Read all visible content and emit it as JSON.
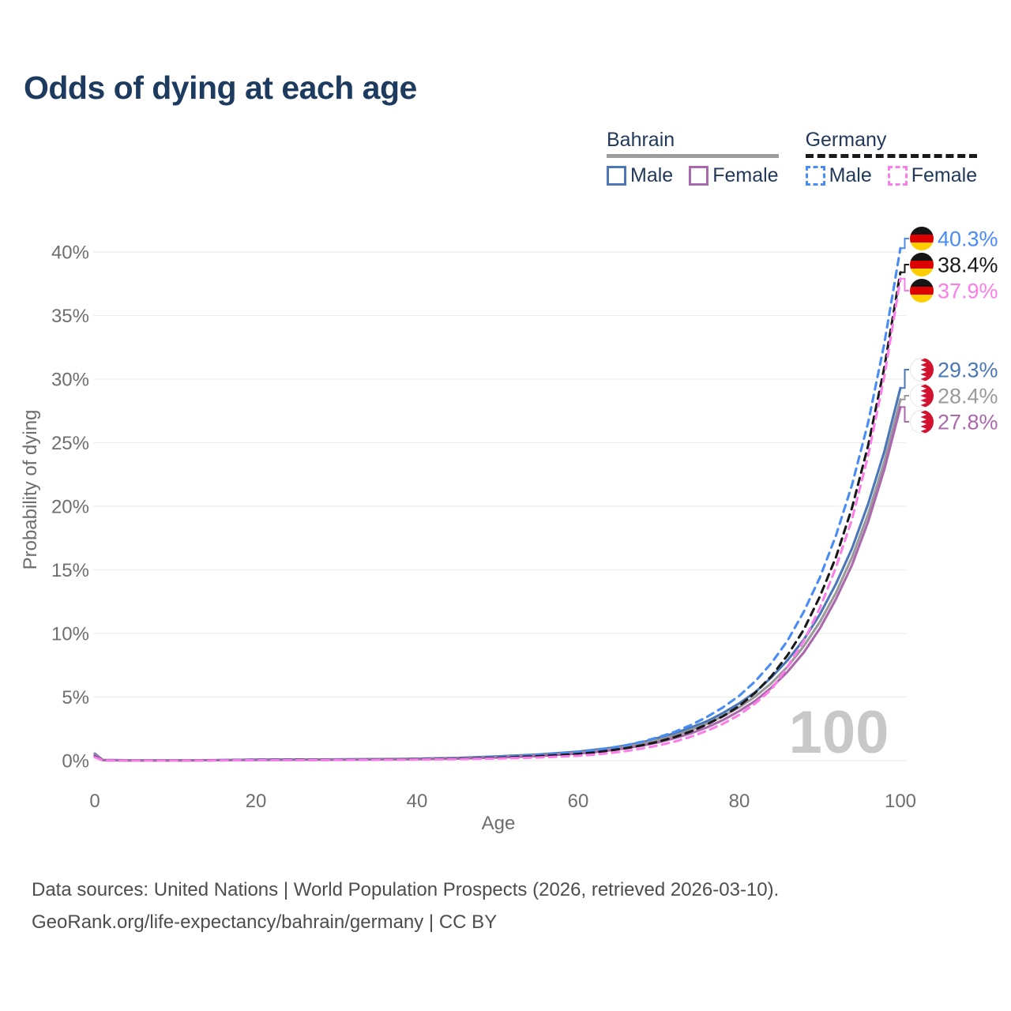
{
  "title": "Odds of dying at each age",
  "colors": {
    "title": "#1d3a5f",
    "legend_text": "#22395a",
    "footer": "#4d4d4d",
    "tick": "#6e6e6e",
    "grid": "#ededed",
    "watermark": "#c8c8c8"
  },
  "legend": {
    "groups": [
      {
        "name": "Bahrain",
        "style": "solid",
        "underline_color": "#9e9e9e",
        "items": [
          {
            "label": "Male",
            "color": "#4b77b8"
          },
          {
            "label": "Female",
            "color": "#ab68ad"
          }
        ]
      },
      {
        "name": "Germany",
        "style": "dashed",
        "underline_color": "#1a1a1a",
        "items": [
          {
            "label": "Male",
            "color": "#4a8cf5"
          },
          {
            "label": "Female",
            "color": "#fb7ee8"
          }
        ]
      }
    ]
  },
  "chart_data": {
    "type": "line",
    "title": "Odds of dying at each age",
    "xlabel": "Age",
    "ylabel": "Probability of dying",
    "xlim": [
      0,
      100
    ],
    "ylim": [
      0,
      41.5
    ],
    "grid": true,
    "legend_position": "top-right",
    "watermark": "100",
    "x_ticks": [
      0,
      20,
      40,
      60,
      80,
      100
    ],
    "y_ticks": [
      {
        "value": 0,
        "label": "0%"
      },
      {
        "value": 5,
        "label": "5%"
      },
      {
        "value": 10,
        "label": "10%"
      },
      {
        "value": 15,
        "label": "15%"
      },
      {
        "value": 20,
        "label": "20%"
      },
      {
        "value": 25,
        "label": "25%"
      },
      {
        "value": 30,
        "label": "30%"
      },
      {
        "value": 35,
        "label": "35%"
      },
      {
        "value": 40,
        "label": "40%"
      }
    ],
    "ages": [
      0,
      1,
      5,
      10,
      15,
      20,
      25,
      30,
      35,
      40,
      45,
      50,
      55,
      60,
      62,
      64,
      66,
      68,
      70,
      72,
      74,
      76,
      78,
      80,
      82,
      84,
      86,
      88,
      90,
      92,
      94,
      96,
      98,
      100
    ],
    "series": [
      {
        "id": "bahrain-male",
        "name": "Bahrain Male",
        "country": "Bahrain",
        "sex": "Male",
        "flag": "bahrain",
        "color": "#4b77b8",
        "dashed": false,
        "end_label": "29.3%",
        "end_label_color": "#4b77b8",
        "values": [
          0.55,
          0.05,
          0.02,
          0.02,
          0.04,
          0.08,
          0.09,
          0.1,
          0.12,
          0.15,
          0.22,
          0.33,
          0.48,
          0.7,
          0.85,
          1.0,
          1.2,
          1.45,
          1.8,
          2.15,
          2.6,
          3.1,
          3.75,
          4.5,
          5.4,
          6.55,
          7.9,
          9.5,
          11.5,
          13.9,
          16.7,
          20.2,
          24.3,
          29.3
        ]
      },
      {
        "id": "bahrain-total",
        "name": "Bahrain",
        "country": "Bahrain",
        "sex": "Both",
        "flag": "bahrain",
        "color": "#9a9a9a",
        "dashed": false,
        "end_label": "28.4%",
        "end_label_color": "#9a9a9a",
        "values": [
          0.5,
          0.045,
          0.018,
          0.018,
          0.035,
          0.065,
          0.075,
          0.085,
          0.1,
          0.13,
          0.19,
          0.28,
          0.42,
          0.62,
          0.75,
          0.9,
          1.1,
          1.33,
          1.62,
          1.97,
          2.4,
          2.9,
          3.5,
          4.2,
          5.05,
          6.1,
          7.4,
          9.0,
          10.9,
          13.2,
          16.0,
          19.4,
          23.5,
          28.4
        ]
      },
      {
        "id": "bahrain-female",
        "name": "Bahrain Female",
        "country": "Bahrain",
        "sex": "Female",
        "flag": "bahrain",
        "color": "#ab68ad",
        "dashed": false,
        "end_label": "27.8%",
        "end_label_color": "#ab68ad",
        "values": [
          0.45,
          0.04,
          0.015,
          0.015,
          0.03,
          0.05,
          0.06,
          0.07,
          0.085,
          0.11,
          0.16,
          0.24,
          0.36,
          0.55,
          0.67,
          0.81,
          0.98,
          1.19,
          1.45,
          1.77,
          2.15,
          2.62,
          3.2,
          3.9,
          4.7,
          5.75,
          7.0,
          8.5,
          10.4,
          12.7,
          15.4,
          18.8,
          22.9,
          27.8
        ]
      },
      {
        "id": "germany-male",
        "name": "Germany Male",
        "country": "Germany",
        "sex": "Male",
        "flag": "germany",
        "color": "#4a8cf5",
        "dashed": true,
        "end_label": "40.3%",
        "end_label_color": "#4a8cf5",
        "values": [
          0.32,
          0.025,
          0.01,
          0.01,
          0.03,
          0.06,
          0.07,
          0.08,
          0.09,
          0.12,
          0.17,
          0.27,
          0.43,
          0.66,
          0.81,
          1.0,
          1.22,
          1.5,
          1.85,
          2.27,
          2.8,
          3.44,
          4.2,
          5.1,
          6.25,
          7.68,
          9.45,
          11.7,
          14.4,
          17.7,
          21.7,
          26.6,
          32.8,
          40.3
        ]
      },
      {
        "id": "germany-total",
        "name": "Germany",
        "country": "Germany",
        "sex": "Both",
        "flag": "germany",
        "color": "#1a1a1a",
        "dashed": true,
        "end_label": "38.4%",
        "end_label_color": "#1a1a1a",
        "values": [
          0.3,
          0.022,
          0.009,
          0.009,
          0.025,
          0.045,
          0.055,
          0.065,
          0.075,
          0.1,
          0.14,
          0.22,
          0.34,
          0.52,
          0.64,
          0.8,
          0.99,
          1.22,
          1.5,
          1.86,
          2.3,
          2.85,
          3.5,
          4.3,
          5.35,
          6.65,
          8.3,
          10.3,
          12.9,
          16.0,
          19.9,
          24.8,
          30.9,
          38.4
        ]
      },
      {
        "id": "germany-female",
        "name": "Germany Female",
        "country": "Germany",
        "sex": "Female",
        "flag": "germany",
        "color": "#fb7ee8",
        "dashed": true,
        "end_label": "37.9%",
        "end_label_color": "#fb7ee8",
        "values": [
          0.27,
          0.02,
          0.008,
          0.008,
          0.02,
          0.03,
          0.04,
          0.05,
          0.06,
          0.08,
          0.11,
          0.17,
          0.25,
          0.38,
          0.47,
          0.6,
          0.76,
          0.96,
          1.2,
          1.5,
          1.88,
          2.35,
          2.9,
          3.6,
          4.5,
          5.6,
          7.4,
          9.4,
          12.0,
          15.2,
          19.0,
          24.0,
          30.2,
          37.9
        ]
      }
    ]
  },
  "footer": {
    "line1": "Data sources: United Nations | World Population Prospects (2026, retrieved 2026-03-10).",
    "line2": "GeoRank.org/life-expectancy/bahrain/germany | CC BY"
  }
}
